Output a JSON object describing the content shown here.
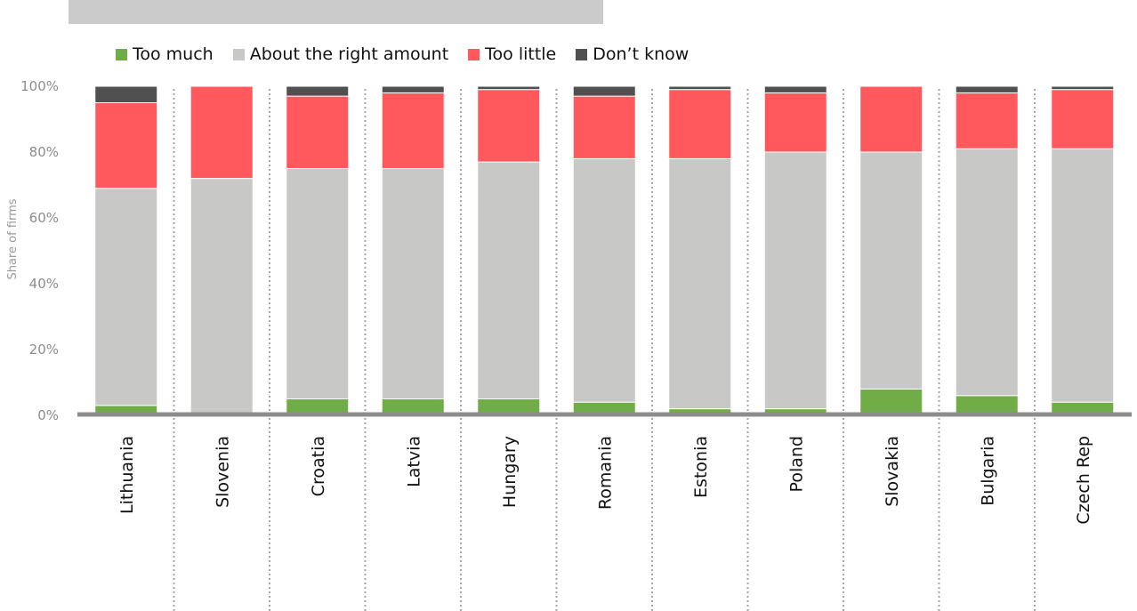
{
  "chart_data": {
    "type": "bar",
    "stacked": true,
    "orientation": "vertical",
    "title": "",
    "xlabel": "",
    "ylabel": "Share of firms",
    "ylim": [
      0,
      100
    ],
    "yticks": [
      "0%",
      "20%",
      "40%",
      "60%",
      "80%",
      "100%"
    ],
    "grid": false,
    "legend_position": "top-left",
    "categories": [
      "Lithuania",
      "Slovenia",
      "Croatia",
      "Latvia",
      "Hungary",
      "Romania",
      "Estonia",
      "Poland",
      "Slovakia",
      "Bulgaria",
      "Czech Rep"
    ],
    "series": [
      {
        "name": "Too much",
        "color": "#70ad47",
        "values": [
          3,
          0,
          5,
          5,
          5,
          4,
          2,
          2,
          8,
          6,
          4
        ]
      },
      {
        "name": "About the right amount",
        "color": "#c8c8c6",
        "values": [
          66,
          72,
          70,
          70,
          72,
          74,
          76,
          78,
          72,
          75,
          77
        ]
      },
      {
        "name": "Too little",
        "color": "#ff585d",
        "values": [
          26,
          28,
          22,
          23,
          22,
          19,
          21,
          18,
          20,
          17,
          18
        ]
      },
      {
        "name": "Don’t know",
        "color": "#505050",
        "values": [
          5,
          0,
          3,
          2,
          1,
          3,
          1,
          2,
          0,
          2,
          1
        ]
      }
    ]
  }
}
